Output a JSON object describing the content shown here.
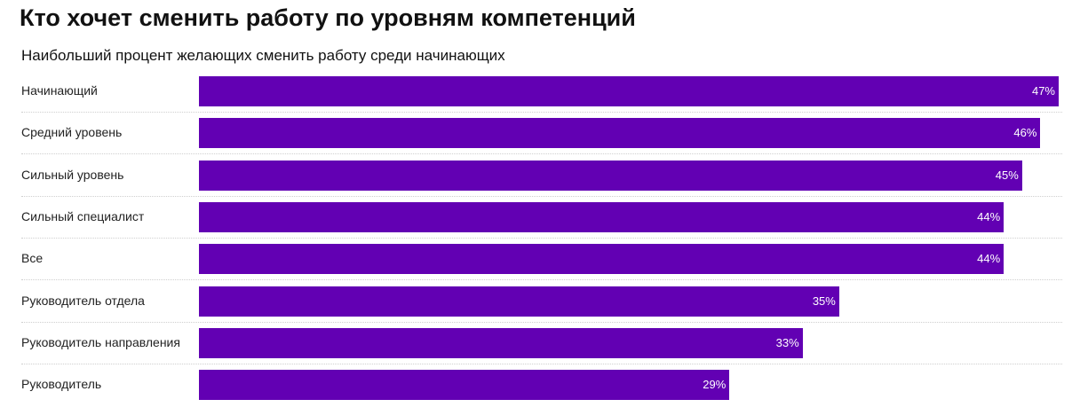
{
  "title": "Кто хочет сменить работу по уровням компетенций",
  "subtitle": "Наибольший процент желающих сменить работу среди начинающих",
  "chart_data": {
    "type": "bar",
    "orientation": "horizontal",
    "title": "Кто хочет сменить работу по уровням компетенций",
    "subtitle": "Наибольший процент желающих сменить работу среди начинающих",
    "categories": [
      "Начинающий",
      "Средний уровень",
      "Сильный уровень",
      "Сильный специалист",
      "Все",
      "Руководитель отдела",
      "Руководитель направления",
      "Руководитель"
    ],
    "values": [
      47,
      46,
      45,
      44,
      44,
      35,
      33,
      29
    ],
    "value_labels": [
      "47%",
      "46%",
      "45%",
      "44%",
      "44%",
      "35%",
      "33%",
      "29%"
    ],
    "unit": "%",
    "xlim": [
      0,
      47
    ],
    "bar_color": "#6200b3",
    "grid": false
  }
}
